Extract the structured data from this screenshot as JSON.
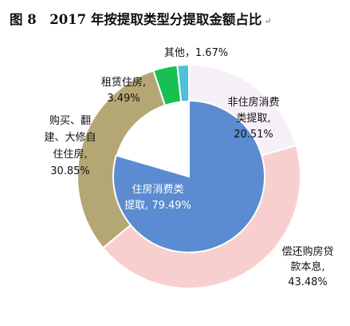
{
  "figure_title": "图 8　2017 年按提取类型分提取金额占比",
  "paragraph_mark": "↵",
  "chart_data": [
    {
      "type": "pie",
      "ring": "outer",
      "categories": [
        "非住房消费类提取",
        "偿还购房贷款本息",
        "购买、翻建、大修自住住房",
        "租赁住房",
        "其他"
      ],
      "values": [
        20.51,
        43.48,
        30.85,
        3.49,
        1.67
      ],
      "unit": "%",
      "colors": [
        "#f5f0f8",
        "#f8cfcf",
        "#b5a774",
        "#16c152",
        "#4fc0d8"
      ],
      "labels": [
        [
          "非住房消费",
          "类提取,",
          "20.51%"
        ],
        [
          "偿还购房贷",
          "款本息,",
          "43.48%"
        ],
        [
          "购买、翻",
          "建、大修自",
          "住住房,",
          "30.85%"
        ],
        [
          "租赁住房,",
          "3.49%"
        ],
        [
          "其他，1.67%"
        ]
      ]
    },
    {
      "type": "pie",
      "ring": "inner",
      "categories": [
        "住房消费类提取"
      ],
      "values": [
        79.49
      ],
      "unit": "%",
      "colors": [
        "#5b8bd0"
      ],
      "labels": [
        [
          "住房消费类",
          "提取, 79.49%"
        ]
      ]
    }
  ]
}
